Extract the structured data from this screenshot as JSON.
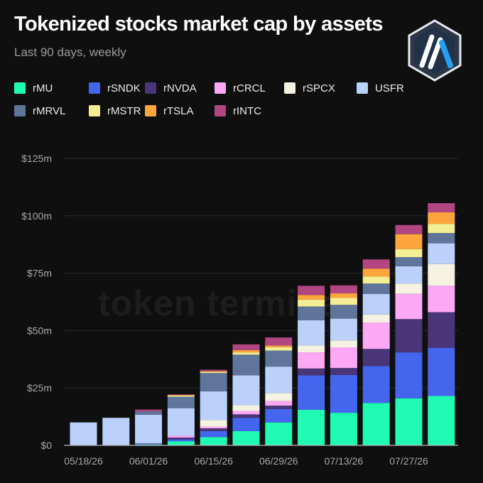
{
  "title": "Tokenized stocks market cap by assets",
  "subtitle": "Last 90 days, weekly",
  "watermark": "token terminal",
  "logo": {
    "icon": "arbitrum-icon",
    "colors": {
      "outer": "#2d3748",
      "blue": "#28a0f0",
      "white": "#ffffff"
    }
  },
  "chart_data": {
    "type": "bar",
    "stacked": true,
    "title": "Tokenized stocks market cap by assets",
    "subtitle": "Last 90 days, weekly",
    "xlabel": "",
    "ylabel": "",
    "ylim": [
      0,
      125
    ],
    "y_unit": "$m",
    "y_ticks": [
      0,
      25,
      50,
      75,
      100,
      125
    ],
    "y_tick_labels": [
      "$0",
      "$25m",
      "$50m",
      "$75m",
      "$100m",
      "$125m"
    ],
    "grid": "horizontal",
    "legend_position": "top",
    "categories": [
      "05/18/26",
      "05/25/26",
      "06/01/26",
      "06/08/26",
      "06/15/26",
      "06/22/26",
      "06/29/26",
      "07/06/26",
      "07/13/26",
      "07/20/26",
      "07/27/26",
      "08/03/26"
    ],
    "x_tick_labels": [
      "05/18/26",
      "06/01/26",
      "06/15/26",
      "06/29/26",
      "07/13/26",
      "07/27/26"
    ],
    "series": [
      {
        "name": "rMU",
        "color": "#1ffbb3",
        "values": [
          0,
          0,
          0.4,
          1.8,
          3.6,
          6.2,
          10,
          15.5,
          14.2,
          18.5,
          20.5,
          21.5
        ]
      },
      {
        "name": "rSNDK",
        "color": "#4466ee",
        "values": [
          0,
          0,
          0.2,
          0.8,
          2.6,
          5.8,
          5.8,
          15,
          16.5,
          16,
          20,
          21
        ]
      },
      {
        "name": "rNVDA",
        "color": "#4a3578",
        "values": [
          0,
          0,
          0.2,
          0.8,
          1.2,
          1.5,
          1.5,
          3,
          3,
          7.5,
          14.5,
          15.5
        ]
      },
      {
        "name": "rCRCL",
        "color": "#fca8f5",
        "values": [
          0,
          0,
          0,
          0.8,
          0.8,
          1.5,
          2,
          7,
          9,
          11.5,
          11,
          11.5
        ]
      },
      {
        "name": "rSPCX",
        "color": "#f6f2e2",
        "values": [
          0,
          0,
          0,
          0,
          2.8,
          2.5,
          3.5,
          3,
          3,
          3.5,
          4.5,
          9.5
        ]
      },
      {
        "name": "USFR",
        "color": "#bcd0fc",
        "values": [
          10,
          12,
          12.5,
          12,
          12.5,
          13,
          11.5,
          11,
          9.5,
          9,
          7.5,
          9
        ]
      },
      {
        "name": "rMRVL",
        "color": "#5f7599",
        "values": [
          0,
          0,
          1.5,
          5,
          8,
          9,
          7,
          6,
          6,
          4.5,
          4,
          4.5
        ]
      },
      {
        "name": "rMSTR",
        "color": "#f3ed93",
        "values": [
          0,
          0,
          0,
          0.5,
          0.5,
          1,
          1.5,
          3,
          3,
          3,
          3.5,
          4
        ]
      },
      {
        "name": "rTSLA",
        "color": "#fba53c",
        "values": [
          0,
          0,
          0,
          0.3,
          0.3,
          1,
          0.7,
          2,
          2,
          3.5,
          6.5,
          5
        ]
      },
      {
        "name": "rINTC",
        "color": "#b14683",
        "values": [
          0,
          0,
          0.8,
          0.2,
          0.6,
          2.5,
          3.5,
          4,
          3.5,
          4,
          4,
          4
        ]
      }
    ]
  }
}
